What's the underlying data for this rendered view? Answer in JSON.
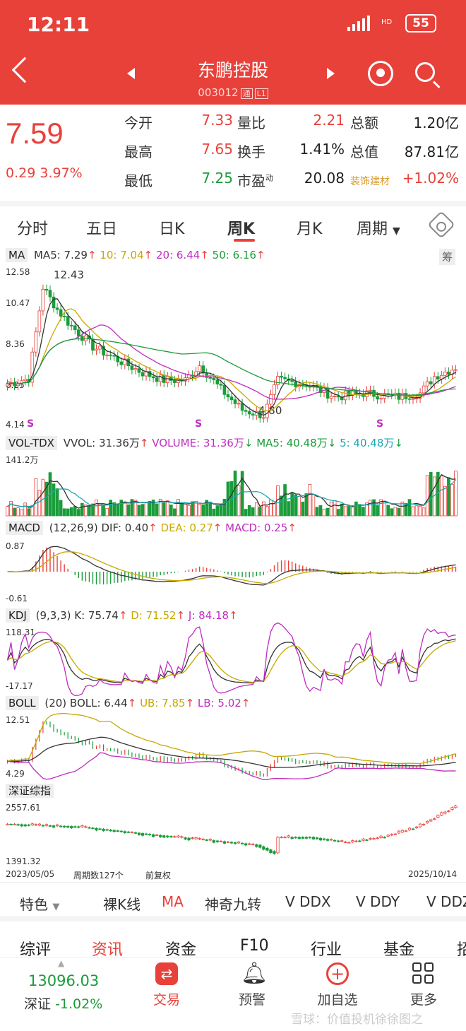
{
  "status": {
    "time": "12:11",
    "network": "HD",
    "battery": "55"
  },
  "header": {
    "name": "东鹏控股",
    "code": "003012",
    "badge_tong": "通",
    "badge_level": "L1"
  },
  "quote": {
    "price": "7.59",
    "change": "0.29",
    "change_pct": "3.97%",
    "fields": [
      {
        "label": "今开",
        "value": "7.33"
      },
      {
        "label": "最高",
        "value": "7.65"
      },
      {
        "label": "最低",
        "value": "7.25"
      },
      {
        "label": "量比",
        "value": "2.21"
      },
      {
        "label": "换手",
        "value": "1.41%"
      },
      {
        "label": "市盈",
        "sup": "动",
        "value": "20.08"
      },
      {
        "label": "总额",
        "value": "1.20亿"
      },
      {
        "label": "总值",
        "value": "87.81亿"
      },
      {
        "label": "装饰建材",
        "value": "+1.02%"
      }
    ]
  },
  "tabs": [
    "分时",
    "五日",
    "日K",
    "周K",
    "月K",
    "周期"
  ],
  "active_tab": "周K",
  "ma": {
    "name": "MA",
    "ma5": "MA5: 7.29",
    "ma10": "10: 7.04",
    "ma20": "20: 6.44",
    "ma50": "50: 6.16",
    "chou": "筹",
    "y_labels": [
      "12.58",
      "10.47",
      "8.36",
      "6.25",
      "4.14"
    ],
    "high_mark": "12.43",
    "low_mark": "4.80",
    "s_mark": "S"
  },
  "vol": {
    "name": "VOL-TDX",
    "vvol": "VVOL: 31.36万",
    "volume": "VOLUME: 31.36万",
    "ma5": "MA5: 40.48万",
    "ma5b": "5: 40.48万",
    "y_top": "141.2万"
  },
  "macd": {
    "name": "MACD",
    "params": "(12,26,9)",
    "dif": "DIF: 0.40",
    "dea": "DEA: 0.27",
    "macd": "MACD: 0.25",
    "y_top": "0.87",
    "y_bot": "-0.61"
  },
  "kdj": {
    "name": "KDJ",
    "params": "(9,3,3)",
    "k": "K: 75.74",
    "d": "D: 71.52",
    "j": "J: 84.18",
    "y_top": "118.31",
    "y_bot": "-17.17"
  },
  "boll": {
    "name": "BOLL",
    "params": "(20)",
    "boll": "BOLL: 6.44",
    "ub": "UB: 7.85",
    "lb": "LB: 5.02",
    "y_top": "12.51",
    "y_bot": "4.29"
  },
  "index": {
    "name": "深证综指",
    "y_top": "2557.61",
    "y_bot": "1391.32",
    "start": "2023/05/05",
    "count": "周期数127个",
    "adj": "前复权",
    "end": "2025/10/14"
  },
  "features": [
    "特色",
    "裸K线",
    "MA",
    "神奇九转",
    "V DDX",
    "V DDY",
    "V DDZ"
  ],
  "bottom_tabs": [
    "综评",
    "资讯",
    "资金",
    "F10",
    "行业",
    "基金",
    "招"
  ],
  "bottom_nav": {
    "index_value": "13096.03",
    "index_name": "深证",
    "index_chg": "-1.02%",
    "trade": "交易",
    "alert": "预警",
    "add": "加自选",
    "more": "更多"
  },
  "watermark": "雪球：价值投机徐徐图之",
  "colors": {
    "up": "#e8413a",
    "down": "#1a9c3a",
    "accent": "#e8413a"
  }
}
